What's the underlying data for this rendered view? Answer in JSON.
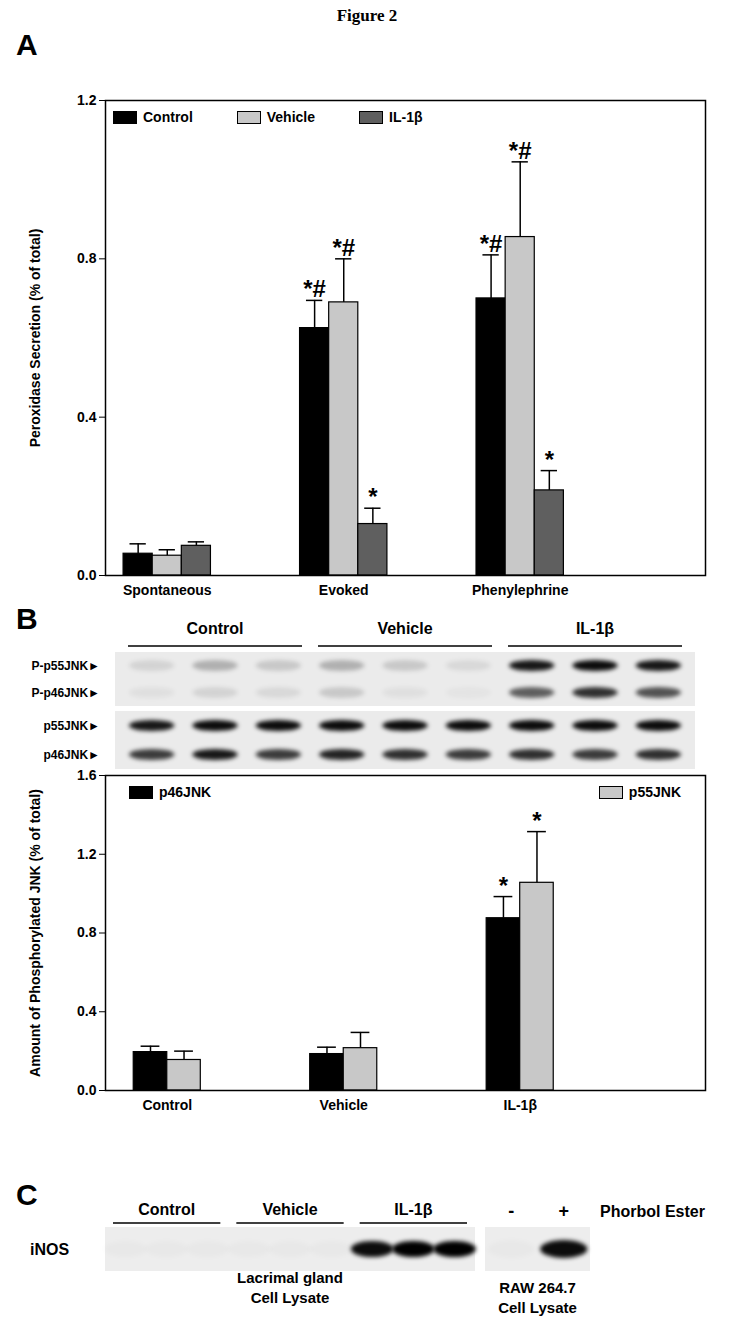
{
  "title": "Figure 2",
  "chart_data": [
    {
      "panel_label": "A",
      "type": "bar",
      "categories": [
        "Spontaneous",
        "Evoked",
        "Phenylephrine"
      ],
      "y_label": "Peroxidase Secretion (% of total)",
      "ylim": [
        0,
        1.2
      ],
      "yticks": [
        {
          "value": 0,
          "label": "0.0"
        },
        0.4,
        0.8,
        1.2
      ],
      "legend": "top left",
      "series": [
        {
          "name": "Control",
          "color": "#000000",
          "values": [
            0.055,
            0.625,
            0.7
          ],
          "errors": [
            0.025,
            0.07,
            0.11
          ],
          "annotations": [
            null,
            "*#",
            "*#"
          ]
        },
        {
          "name": "Vehicle",
          "color": "#c8c8c8",
          "values": [
            0.05,
            0.69,
            0.855
          ],
          "errors": [
            0.015,
            0.11,
            0.19
          ],
          "annotations": [
            null,
            "*#",
            "*#"
          ]
        },
        {
          "name": "IL-1β",
          "color": "#5f5f5f",
          "values": [
            0.075,
            0.13,
            0.215
          ],
          "errors": [
            0.01,
            0.04,
            0.05
          ],
          "annotations": [
            null,
            "*",
            "*"
          ]
        }
      ]
    },
    {
      "panel_label": "B",
      "type": "bar",
      "categories": [
        "Control",
        "Vehicle",
        "IL-1β"
      ],
      "y_label": "Amount of Phosphorylated JNK (% of total)",
      "ylim": [
        0,
        1.6
      ],
      "yticks": [
        {
          "value": 0,
          "label": "0.0"
        },
        0.4,
        0.8,
        1.2,
        1.6
      ],
      "legend": "top",
      "series": [
        {
          "name": "p46JNK",
          "color": "#000000",
          "values": [
            0.195,
            0.185,
            0.875
          ],
          "errors": [
            0.03,
            0.035,
            0.11
          ],
          "annotations": [
            null,
            null,
            "*"
          ]
        },
        {
          "name": "p55JNK",
          "color": "#c8c8c8",
          "values": [
            0.155,
            0.215,
            1.055
          ],
          "errors": [
            0.045,
            0.08,
            0.26
          ],
          "annotations": [
            null,
            null,
            "*"
          ]
        }
      ]
    }
  ],
  "blots": {
    "B": {
      "groups": [
        "Control",
        "Vehicle",
        "IL-1β"
      ],
      "images": [
        {
          "rows": [
            {
              "label": "P-p55JNK►",
              "intensity": [
                0.1,
                0.25,
                0.15,
                0.25,
                0.15,
                0.08,
                0.9,
                0.95,
                0.9
              ]
            },
            {
              "label": "P-p46JNK►",
              "intensity": [
                0.05,
                0.1,
                0.08,
                0.15,
                0.05,
                0.03,
                0.6,
                0.8,
                0.65
              ]
            }
          ]
        },
        {
          "rows": [
            {
              "label": "p55JNK►",
              "intensity": [
                0.9,
                0.95,
                0.95,
                0.95,
                0.95,
                0.95,
                0.95,
                0.95,
                0.95
              ]
            },
            {
              "label": "p46JNK►",
              "intensity": [
                0.75,
                0.9,
                0.75,
                0.85,
                0.8,
                0.75,
                0.8,
                0.75,
                0.8
              ]
            }
          ]
        }
      ]
    },
    "C": {
      "panel_label": "C",
      "groups": [
        "Control",
        "Vehicle",
        "IL-1β"
      ],
      "rows": [
        {
          "label": "iNOS",
          "intensity": [
            0.02,
            0.02,
            0.02,
            0.02,
            0.02,
            0.02,
            0.95,
            1,
            1
          ]
        }
      ],
      "caption": [
        "Lacrimal gland",
        "Cell Lysate"
      ],
      "reference": {
        "lane_labels": [
          "-",
          "+"
        ],
        "condition": "Phorbol Ester",
        "intensity": [
          0.02,
          0.95
        ],
        "caption": [
          "RAW 264.7",
          "Cell Lysate"
        ]
      }
    }
  }
}
